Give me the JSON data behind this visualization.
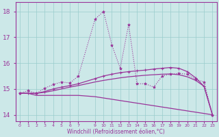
{
  "xlabel": "Windchill (Refroidissement éolien,°C)",
  "background_color": "#cce8e8",
  "line_color": "#993399",
  "grid_color": "#99cccc",
  "xlim": [
    -0.5,
    23.5
  ],
  "ylim": [
    13.75,
    18.35
  ],
  "yticks": [
    14,
    15,
    16,
    17,
    18
  ],
  "ytick_labels": [
    "14",
    "15",
    "16",
    "17",
    "18"
  ],
  "xticks": [
    0,
    1,
    2,
    3,
    4,
    5,
    6,
    7,
    9,
    10,
    11,
    12,
    13,
    14,
    15,
    16,
    17,
    18,
    19,
    20,
    21,
    22,
    23
  ],
  "series_bottom": {
    "x": [
      0,
      1,
      2,
      3,
      4,
      5,
      6,
      7,
      9,
      10,
      11,
      12,
      13,
      14,
      15,
      16,
      17,
      18,
      19,
      20,
      21,
      22,
      23
    ],
    "y": [
      14.83,
      14.83,
      14.75,
      14.75,
      14.75,
      14.75,
      14.75,
      14.75,
      14.7,
      14.65,
      14.6,
      14.55,
      14.5,
      14.45,
      14.4,
      14.35,
      14.3,
      14.25,
      14.2,
      14.15,
      14.1,
      14.05,
      14.0
    ]
  },
  "series_mid1": {
    "x": [
      0,
      1,
      2,
      3,
      4,
      5,
      6,
      7,
      9,
      10,
      11,
      12,
      13,
      14,
      15,
      16,
      17,
      18,
      19,
      20,
      21,
      22,
      23
    ],
    "y": [
      14.83,
      14.83,
      14.83,
      14.87,
      14.93,
      15.0,
      15.07,
      15.13,
      15.27,
      15.33,
      15.38,
      15.43,
      15.47,
      15.5,
      15.53,
      15.55,
      15.57,
      15.58,
      15.55,
      15.47,
      15.33,
      15.1,
      14.0
    ]
  },
  "series_mid2": {
    "x": [
      0,
      1,
      2,
      3,
      4,
      5,
      6,
      7,
      9,
      10,
      11,
      12,
      13,
      14,
      15,
      16,
      17,
      18,
      19,
      20,
      21,
      22,
      23
    ],
    "y": [
      14.83,
      14.83,
      14.83,
      14.9,
      15.0,
      15.07,
      15.13,
      15.2,
      15.4,
      15.5,
      15.57,
      15.63,
      15.67,
      15.7,
      15.73,
      15.77,
      15.8,
      15.83,
      15.8,
      15.67,
      15.43,
      15.1,
      14.0
    ],
    "marker": "+"
  },
  "series_spiky": {
    "x": [
      0,
      1,
      2,
      3,
      4,
      5,
      6,
      7,
      9,
      10,
      11,
      12,
      13,
      14,
      15,
      16,
      17,
      18,
      19,
      20,
      21,
      22,
      23
    ],
    "y": [
      14.83,
      14.93,
      14.83,
      15.03,
      15.17,
      15.27,
      15.23,
      15.5,
      17.7,
      18.0,
      16.7,
      15.8,
      17.5,
      15.2,
      15.2,
      15.07,
      15.5,
      15.57,
      15.6,
      15.57,
      15.37,
      15.27,
      14.0
    ],
    "marker": "*"
  }
}
